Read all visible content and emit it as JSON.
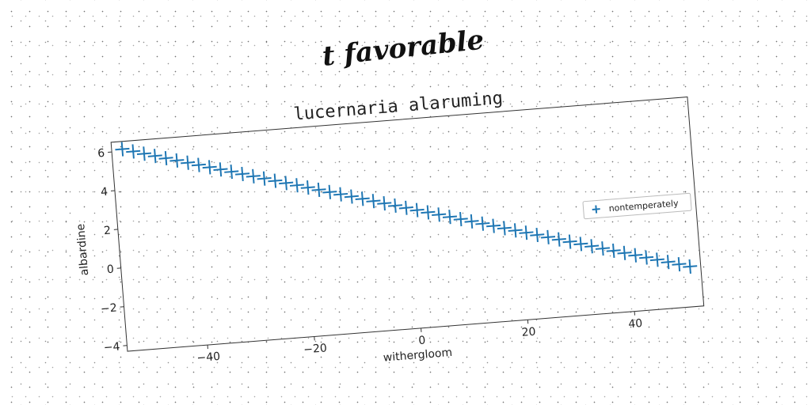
{
  "supertitle": "t favorable",
  "chart_data": {
    "type": "scatter",
    "title": "lucernaria alaruming",
    "xlabel": "withergloom",
    "ylabel": "albardine",
    "xlim": [
      -55,
      53
    ],
    "ylim": [
      -4.3,
      6.5
    ],
    "x_ticks": [
      -40,
      -20,
      0,
      20,
      40
    ],
    "x_tick_labels": [
      "−40",
      "−20",
      "0",
      "20",
      "40"
    ],
    "y_ticks": [
      -4,
      -2,
      0,
      2,
      4,
      6
    ],
    "y_tick_labels": [
      "−4",
      "−2",
      "0",
      "2",
      "4",
      "6"
    ],
    "grid": false,
    "legend_position": "center-right",
    "marker": "plus",
    "series": [
      {
        "name": "nontemperately",
        "color": "#1f77b4",
        "x": [
          -53,
          -51,
          -49,
          -47,
          -45,
          -43,
          -41,
          -39,
          -37,
          -35,
          -33,
          -31,
          -29,
          -27,
          -25,
          -23,
          -21,
          -19,
          -17,
          -15,
          -13,
          -11,
          -9,
          -7,
          -5,
          -3,
          -1,
          1,
          3,
          5,
          7,
          9,
          11,
          13,
          15,
          17,
          19,
          21,
          23,
          25,
          27,
          29,
          31,
          33,
          35,
          37,
          39,
          41,
          43,
          45,
          47,
          49,
          51
        ],
        "y": [
          6.1,
          5.94,
          5.78,
          5.62,
          5.46,
          5.3,
          5.14,
          4.98,
          4.82,
          4.66,
          4.5,
          4.34,
          4.18,
          4.02,
          3.86,
          3.7,
          3.54,
          3.38,
          3.22,
          3.06,
          2.9,
          2.74,
          2.58,
          2.42,
          2.26,
          2.1,
          1.94,
          1.78,
          1.62,
          1.46,
          1.3,
          1.14,
          0.98,
          0.82,
          0.66,
          0.5,
          0.34,
          0.18,
          0.02,
          -0.14,
          -0.3,
          -0.46,
          -0.62,
          -0.78,
          -0.94,
          -1.1,
          -1.26,
          -1.42,
          -1.58,
          -1.74,
          -1.9,
          -2.06,
          -2.22
        ]
      }
    ]
  }
}
